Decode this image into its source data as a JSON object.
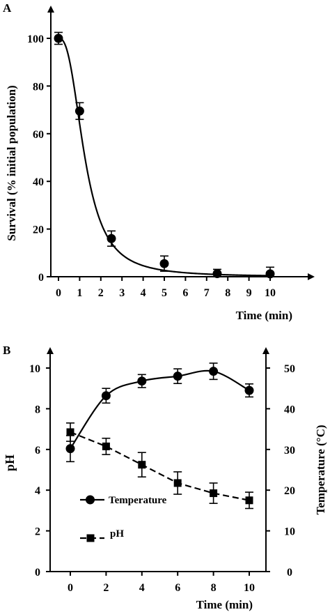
{
  "chart_data": [
    {
      "panel": "A",
      "type": "scatter",
      "xlabel": "Time (min)",
      "ylabel": "Survival (% initial population)",
      "xlim": [
        0,
        10
      ],
      "ylim": [
        0,
        100
      ],
      "xticks": [
        0,
        1,
        2,
        3,
        4,
        5,
        6,
        7,
        8,
        9,
        10
      ],
      "yticks": [
        0,
        20,
        40,
        60,
        80,
        100
      ],
      "fit_curve": true,
      "series": [
        {
          "x": [
            0,
            1,
            2.5,
            5,
            7.5,
            10
          ],
          "y": [
            100,
            69.5,
            16,
            5.5,
            1.3,
            1.2
          ],
          "error": [
            2.5,
            3.5,
            3.2,
            3.2,
            1.8,
            2.8
          ]
        }
      ]
    },
    {
      "panel": "B",
      "type": "line",
      "xlabel": "Time (min)",
      "ylabel": "pH",
      "ylabel_right": "Temperature (°C)",
      "xlim": [
        0,
        10
      ],
      "ylim": [
        0,
        10
      ],
      "ylim_right": [
        0,
        50
      ],
      "xticks": [
        0,
        2,
        4,
        6,
        8,
        10
      ],
      "yticks": [
        0,
        2,
        4,
        6,
        8,
        10
      ],
      "yticks_right": [
        0,
        10,
        20,
        30,
        40,
        50
      ],
      "legend_position": "lower-left",
      "series": [
        {
          "name": "Temperature",
          "axis": "right",
          "marker": "circle",
          "style": "solid",
          "x": [
            0,
            2,
            4,
            6,
            8,
            10
          ],
          "y": [
            30.2,
            43.2,
            46.8,
            48,
            49.2,
            44.5
          ],
          "error": [
            3.2,
            1.8,
            1.6,
            1.8,
            2,
            1.6
          ]
        },
        {
          "name": "pH",
          "axis": "left",
          "marker": "square",
          "style": "dashed",
          "x": [
            0,
            2,
            4,
            6,
            8,
            10
          ],
          "y": [
            6.85,
            6.15,
            5.25,
            4.35,
            3.85,
            3.5
          ],
          "error": [
            0.45,
            0.4,
            0.6,
            0.55,
            0.5,
            0.4
          ]
        }
      ]
    }
  ]
}
